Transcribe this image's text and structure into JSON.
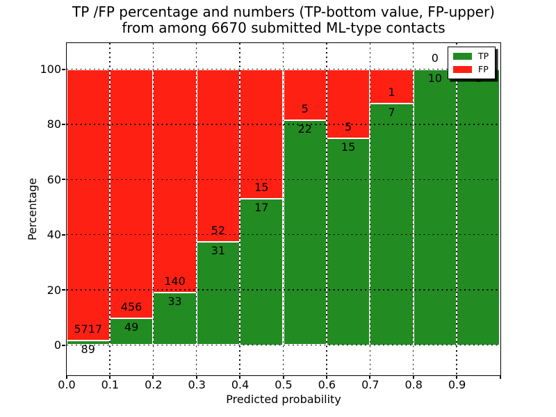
{
  "title": {
    "line1": "TP /FP percentage and numbers (TP-bottom value, FP-upper)",
    "line2": "from among 6670 submitted ML-type contacts"
  },
  "x_axis": {
    "label": "Predicted probability",
    "ticks": [
      "0.0",
      "0.1",
      "0.2",
      "0.3",
      "0.4",
      "0.5",
      "0.6",
      "0.7",
      "0.8",
      "0.9"
    ]
  },
  "y_axis": {
    "label": "Percentage",
    "ticks": [
      "0",
      "20",
      "40",
      "60",
      "80",
      "100"
    ]
  },
  "legend": {
    "items": [
      {
        "label": "TP",
        "color": "#228b22"
      },
      {
        "label": "FP",
        "color": "#ff2014"
      }
    ],
    "position": "upper right",
    "shadow": true
  },
  "colors": {
    "tp": "#228b22",
    "fp": "#ff2014",
    "grid": "#000000",
    "bar_edge": "#ffffff",
    "background": "#ffffff",
    "text": "#000000"
  },
  "chart_data": {
    "type": "bar",
    "stacked": true,
    "title": "TP /FP percentage and numbers (TP-bottom value, FP-upper) from among 6670 submitted ML-type contacts",
    "xlabel": "Predicted probability",
    "ylabel": "Percentage",
    "total_contacts": 6670,
    "bin_edges": [
      0.0,
      0.1,
      0.2,
      0.3,
      0.4,
      0.5,
      0.6,
      0.7,
      0.8,
      0.9,
      1.0
    ],
    "series": [
      {
        "name": "TP",
        "counts": [
          89,
          49,
          33,
          31,
          17,
          22,
          15,
          7,
          10,
          6
        ]
      },
      {
        "name": "FP",
        "counts": [
          5717,
          456,
          140,
          52,
          15,
          5,
          5,
          1,
          0,
          0
        ]
      }
    ],
    "tp_percent": [
      1.5,
      9.7,
      19.1,
      37.3,
      53.1,
      81.5,
      75.0,
      87.5,
      100.0,
      100.0
    ],
    "ylim": [
      -11,
      109.4
    ],
    "xlim": [
      0.0,
      1.0
    ],
    "grid": "dotted black, drawn over bars",
    "legend_position": "upper right"
  }
}
